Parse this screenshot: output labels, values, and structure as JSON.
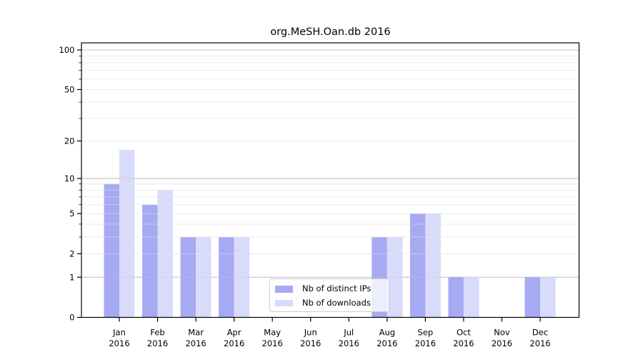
{
  "chart_data": {
    "type": "bar",
    "title": "org.MeSH.Oan.db 2016",
    "year_label": "2016",
    "categories": [
      "Jan",
      "Feb",
      "Mar",
      "Apr",
      "May",
      "Jun",
      "Jul",
      "Aug",
      "Sep",
      "Oct",
      "Nov",
      "Dec"
    ],
    "series": [
      {
        "name": "Nb of distinct IPs",
        "key": "distinct-ips",
        "color": "#a6aaf2",
        "values": [
          9,
          6,
          3,
          3,
          0,
          0,
          0,
          3,
          5,
          1,
          0,
          1
        ]
      },
      {
        "name": "Nb of downloads",
        "key": "downloads",
        "color": "#d9dbfa",
        "values": [
          17,
          8,
          3,
          3,
          0,
          0,
          0,
          3,
          5,
          1,
          0,
          1
        ]
      }
    ],
    "xlabel": "",
    "ylabel": "",
    "yscale": "log1p",
    "ylim": [
      0,
      113
    ],
    "yticks": [
      0,
      1,
      2,
      5,
      10,
      20,
      50,
      100
    ],
    "minor_yticks": [
      3,
      4,
      6,
      7,
      8,
      9,
      30,
      40,
      60,
      70,
      80,
      90
    ],
    "grid": "horizontal",
    "legend_position": "inside lower-center-left"
  },
  "colors": {
    "grid_decade": "#c6c6c6",
    "grid_minor": "#ededed",
    "axis": "#000000",
    "text": "#000000",
    "legend_border": "#cccccc"
  }
}
